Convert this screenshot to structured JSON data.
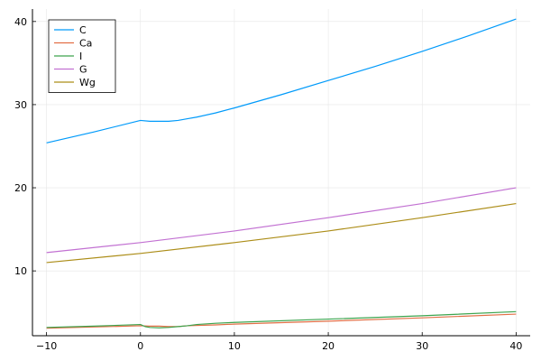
{
  "chart_data": {
    "type": "line",
    "title": "",
    "xlabel": "",
    "ylabel": "",
    "xlim": [
      -11.5,
      41.5
    ],
    "ylim": [
      2.2,
      41.5
    ],
    "xticks": [
      -10,
      0,
      10,
      20,
      30,
      40
    ],
    "yticks": [
      10,
      20,
      30,
      40
    ],
    "grid": true,
    "legend_position": "top-left",
    "series": [
      {
        "name": "C",
        "color": "#009AFA",
        "points": [
          [
            -10,
            25.4
          ],
          [
            -5,
            26.7
          ],
          [
            0,
            28.1
          ],
          [
            1,
            28.0
          ],
          [
            2,
            28.0
          ],
          [
            3,
            28.0
          ],
          [
            4,
            28.1
          ],
          [
            5,
            28.3
          ],
          [
            6,
            28.5
          ],
          [
            8,
            29.0
          ],
          [
            10,
            29.6
          ],
          [
            15,
            31.2
          ],
          [
            20,
            32.9
          ],
          [
            25,
            34.6
          ],
          [
            30,
            36.4
          ],
          [
            35,
            38.3
          ],
          [
            40,
            40.3
          ]
        ]
      },
      {
        "name": "Ca",
        "color": "#E26F46",
        "points": [
          [
            -10,
            3.1
          ],
          [
            -5,
            3.25
          ],
          [
            0,
            3.4
          ],
          [
            1,
            3.35
          ],
          [
            2,
            3.35
          ],
          [
            3,
            3.3
          ],
          [
            4,
            3.3
          ],
          [
            5,
            3.4
          ],
          [
            8,
            3.5
          ],
          [
            10,
            3.6
          ],
          [
            20,
            3.95
          ],
          [
            30,
            4.35
          ],
          [
            40,
            4.8
          ]
        ]
      },
      {
        "name": "I",
        "color": "#3DA44E",
        "points": [
          [
            -10,
            3.2
          ],
          [
            -5,
            3.35
          ],
          [
            0,
            3.55
          ],
          [
            0.5,
            3.3
          ],
          [
            1,
            3.2
          ],
          [
            2,
            3.15
          ],
          [
            3,
            3.2
          ],
          [
            4,
            3.3
          ],
          [
            5,
            3.4
          ],
          [
            6,
            3.55
          ],
          [
            8,
            3.7
          ],
          [
            10,
            3.8
          ],
          [
            20,
            4.2
          ],
          [
            30,
            4.6
          ],
          [
            40,
            5.1
          ]
        ]
      },
      {
        "name": "G",
        "color": "#C271D2",
        "points": [
          [
            -10,
            12.2
          ],
          [
            0,
            13.4
          ],
          [
            10,
            14.8
          ],
          [
            20,
            16.4
          ],
          [
            30,
            18.1
          ],
          [
            40,
            20.0
          ]
        ]
      },
      {
        "name": "Wg",
        "color": "#AC8D18",
        "points": [
          [
            -10,
            11.0
          ],
          [
            0,
            12.1
          ],
          [
            10,
            13.4
          ],
          [
            20,
            14.8
          ],
          [
            30,
            16.4
          ],
          [
            40,
            18.1
          ]
        ]
      }
    ]
  }
}
